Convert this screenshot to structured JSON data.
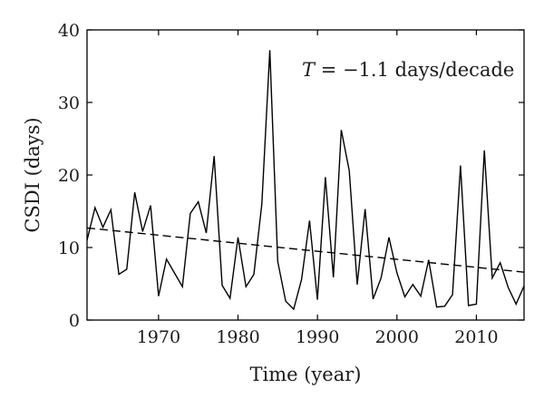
{
  "chart_data": {
    "type": "line",
    "title": "",
    "xlabel": "Time (year)",
    "ylabel": "CSDI (days)",
    "xlim": [
      1961,
      2016
    ],
    "ylim": [
      0,
      40
    ],
    "xticks": [
      1970,
      1980,
      1990,
      2000,
      2010
    ],
    "yticks": [
      0,
      10,
      20,
      30,
      40
    ],
    "grid": false,
    "series": [
      {
        "style": "solid",
        "color": "#000000",
        "x": [
          1961,
          1962,
          1963,
          1964,
          1965,
          1966,
          1967,
          1968,
          1969,
          1970,
          1971,
          1972,
          1973,
          1974,
          1975,
          1976,
          1977,
          1978,
          1979,
          1980,
          1981,
          1982,
          1983,
          1984,
          1985,
          1986,
          1987,
          1988,
          1989,
          1990,
          1991,
          1992,
          1993,
          1994,
          1995,
          1996,
          1997,
          1998,
          1999,
          2000,
          2001,
          2002,
          2003,
          2004,
          2005,
          2006,
          2007,
          2008,
          2009,
          2010,
          2011,
          2012,
          2013,
          2014,
          2015,
          2016
        ],
        "y": [
          11.0,
          15.5,
          12.8,
          15.2,
          6.3,
          7.0,
          17.6,
          12.2,
          15.8,
          3.3,
          8.4,
          6.5,
          4.6,
          14.7,
          16.3,
          12.0,
          22.6,
          4.8,
          3.0,
          11.4,
          4.6,
          6.3,
          16.0,
          37.2,
          8.1,
          2.6,
          1.5,
          5.6,
          13.7,
          2.8,
          19.7,
          5.9,
          26.2,
          20.6,
          4.9,
          15.3,
          2.9,
          5.8,
          11.4,
          6.5,
          3.2,
          4.9,
          3.3,
          8.3,
          1.8,
          1.9,
          3.5,
          21.3,
          2.0,
          2.2,
          23.4,
          5.8,
          7.9,
          4.5,
          2.2,
          4.7
        ]
      },
      {
        "style": "dashed",
        "color": "#000000",
        "x": [
          1961,
          2016
        ],
        "y": [
          12.7,
          6.6
        ]
      }
    ],
    "annotations": [
      {
        "italic": "T",
        "text": " = −1.1 days/decade",
        "x": 1997,
        "y": 34.5
      }
    ]
  }
}
